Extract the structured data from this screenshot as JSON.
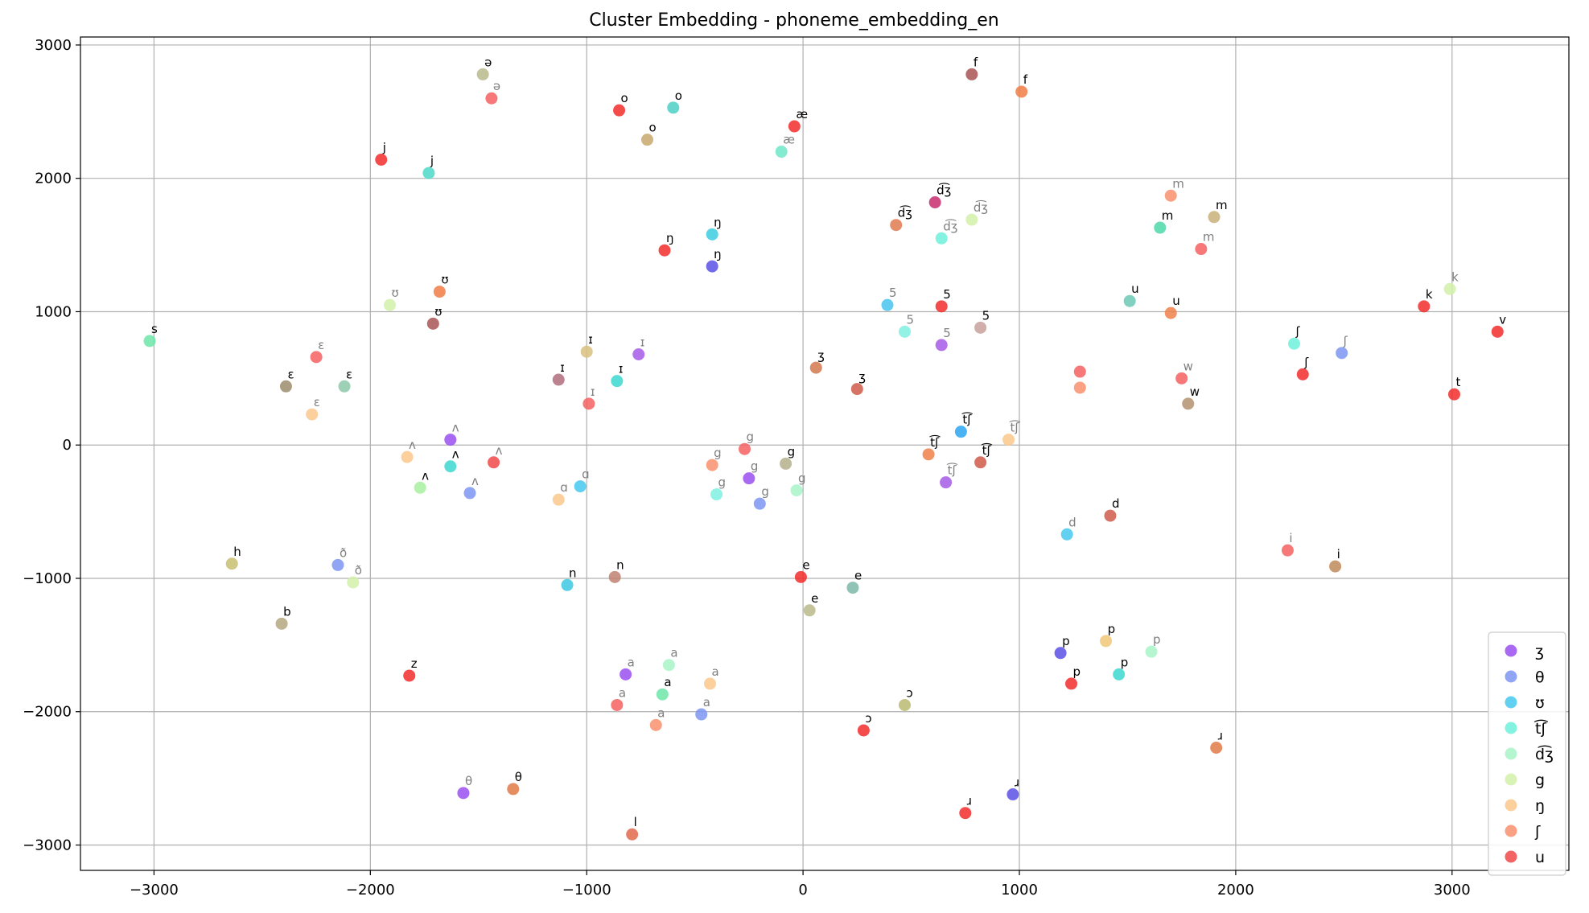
{
  "chart_data": {
    "type": "scatter",
    "title": "Cluster Embedding - phoneme_embedding_en",
    "xlabel": "",
    "ylabel": "",
    "xlim": [
      -3340,
      3540
    ],
    "ylim": [
      -3190,
      3060
    ],
    "xticks": [
      -3000,
      -2000,
      -1000,
      0,
      1000,
      2000,
      3000
    ],
    "yticks": [
      -3000,
      -2000,
      -1000,
      0,
      1000,
      2000,
      3000
    ],
    "xtick_labels": [
      "−3000",
      "−2000",
      "−1000",
      "0",
      "1000",
      "2000",
      "3000"
    ],
    "ytick_labels": [
      "−3000",
      "−2000",
      "−1000",
      "0",
      "1000",
      "2000",
      "3000"
    ],
    "grid": true,
    "legend_position": "bottom-right",
    "legend": [
      {
        "label": "ʒ",
        "color": "#9b4ff0"
      },
      {
        "label": "θ",
        "color": "#7d96f2"
      },
      {
        "label": "ʊ",
        "color": "#46c9ee"
      },
      {
        "label": "t͡ʃ",
        "color": "#6ff0dc"
      },
      {
        "label": "d͡ʒ",
        "color": "#a8f5c8"
      },
      {
        "label": "g",
        "color": "#d2f0a8"
      },
      {
        "label": "ŋ",
        "color": "#fac88c"
      },
      {
        "label": "ʃ",
        "color": "#f8906c"
      },
      {
        "label": "u",
        "color": "#f24848"
      }
    ],
    "points": [
      {
        "label": "ə",
        "x": -1480,
        "y": 2780,
        "color": "#b8ba8a",
        "label_color": "#000000"
      },
      {
        "label": "ə",
        "x": -1440,
        "y": 2600,
        "color": "#f56060",
        "label_color": "#808080"
      },
      {
        "label": "o",
        "x": -850,
        "y": 2510,
        "color": "#f22c2c",
        "label_color": "#000000"
      },
      {
        "label": "o",
        "x": -600,
        "y": 2530,
        "color": "#4ccfc4",
        "label_color": "#000000"
      },
      {
        "label": "o",
        "x": -720,
        "y": 2290,
        "color": "#c8a86c",
        "label_color": "#000000"
      },
      {
        "label": "æ",
        "x": -40,
        "y": 2390,
        "color": "#f22c2c",
        "label_color": "#000000"
      },
      {
        "label": "æ",
        "x": -100,
        "y": 2200,
        "color": "#6ee6c8",
        "label_color": "#808080"
      },
      {
        "label": "f",
        "x": 780,
        "y": 2780,
        "color": "#a85454",
        "label_color": "#000000"
      },
      {
        "label": "f",
        "x": 1010,
        "y": 2650,
        "color": "#f07c46",
        "label_color": "#000000"
      },
      {
        "label": "j",
        "x": -1950,
        "y": 2140,
        "color": "#f22c2c",
        "label_color": "#000000"
      },
      {
        "label": "j",
        "x": -1730,
        "y": 2040,
        "color": "#4cd8c8",
        "label_color": "#000000"
      },
      {
        "label": "d͡ʒ",
        "x": 610,
        "y": 1820,
        "color": "#c82c6e",
        "label_color": "#000000"
      },
      {
        "label": "d͡ʒ",
        "x": 780,
        "y": 1690,
        "color": "#d2f0a8",
        "label_color": "#808080"
      },
      {
        "label": "d͡ʒ",
        "x": 430,
        "y": 1650,
        "color": "#e07a50",
        "label_color": "#000000"
      },
      {
        "label": "d͡ʒ",
        "x": 640,
        "y": 1550,
        "color": "#6ff0dc",
        "label_color": "#808080"
      },
      {
        "label": "m",
        "x": 1700,
        "y": 1870,
        "color": "#f8906c",
        "label_color": "#808080"
      },
      {
        "label": "m",
        "x": 1900,
        "y": 1710,
        "color": "#c8b078",
        "label_color": "#000000"
      },
      {
        "label": "m",
        "x": 1650,
        "y": 1630,
        "color": "#4cd8a8",
        "label_color": "#000000"
      },
      {
        "label": "m",
        "x": 1840,
        "y": 1470,
        "color": "#f56060",
        "label_color": "#808080"
      },
      {
        "label": "ŋ",
        "x": -420,
        "y": 1580,
        "color": "#3ccce0",
        "label_color": "#000000"
      },
      {
        "label": "ŋ",
        "x": -640,
        "y": 1460,
        "color": "#f22c2c",
        "label_color": "#000000"
      },
      {
        "label": "ŋ",
        "x": -420,
        "y": 1340,
        "color": "#5a50e6",
        "label_color": "#000000"
      },
      {
        "label": "ʊ",
        "x": -1680,
        "y": 1150,
        "color": "#f07c46",
        "label_color": "#000000"
      },
      {
        "label": "ʊ",
        "x": -1910,
        "y": 1050,
        "color": "#d2f0a8",
        "label_color": "#808080"
      },
      {
        "label": "ʊ",
        "x": -1710,
        "y": 910,
        "color": "#a85454",
        "label_color": "#000000"
      },
      {
        "label": "s",
        "x": -3020,
        "y": 780,
        "color": "#6ee6a8",
        "label_color": "#000000"
      },
      {
        "label": "ɛ",
        "x": -2250,
        "y": 660,
        "color": "#f56060",
        "label_color": "#808080"
      },
      {
        "label": "ɛ",
        "x": -2390,
        "y": 440,
        "color": "#9c8c6c",
        "label_color": "#000000"
      },
      {
        "label": "ɛ",
        "x": -2120,
        "y": 440,
        "color": "#8cc8a8",
        "label_color": "#000000"
      },
      {
        "label": "ɛ",
        "x": -2270,
        "y": 230,
        "color": "#fac88c",
        "label_color": "#808080"
      },
      {
        "label": "ɪ",
        "x": -1000,
        "y": 700,
        "color": "#d8c080",
        "label_color": "#000000"
      },
      {
        "label": "ɪ",
        "x": -760,
        "y": 680,
        "color": "#a65ae8",
        "label_color": "#808080"
      },
      {
        "label": "ɪ",
        "x": -1130,
        "y": 490,
        "color": "#b06c7c",
        "label_color": "#000000"
      },
      {
        "label": "ɪ",
        "x": -860,
        "y": 480,
        "color": "#3cd8d0",
        "label_color": "#000000"
      },
      {
        "label": "ɪ",
        "x": -990,
        "y": 310,
        "color": "#f56060",
        "label_color": "#808080"
      },
      {
        "label": "5",
        "x": 390,
        "y": 1050,
        "color": "#46c4ee",
        "label_color": "#808080"
      },
      {
        "label": "5",
        "x": 640,
        "y": 1040,
        "color": "#f22c2c",
        "label_color": "#000000"
      },
      {
        "label": "5",
        "x": 470,
        "y": 850,
        "color": "#7ef0e0",
        "label_color": "#808080"
      },
      {
        "label": "5",
        "x": 820,
        "y": 880,
        "color": "#c8a09a",
        "label_color": "#000000"
      },
      {
        "label": "5",
        "x": 640,
        "y": 750,
        "color": "#a65ae8",
        "label_color": "#808080"
      },
      {
        "label": "ʒ",
        "x": 60,
        "y": 580,
        "color": "#d2784c",
        "label_color": "#000000"
      },
      {
        "label": "ʒ",
        "x": 250,
        "y": 420,
        "color": "#d05a4a",
        "label_color": "#000000"
      },
      {
        "label": "u",
        "x": 1510,
        "y": 1080,
        "color": "#6cc8b4",
        "label_color": "#000000"
      },
      {
        "label": "u",
        "x": 1700,
        "y": 990,
        "color": "#f0804a",
        "label_color": "#000000"
      },
      {
        "label": "",
        "x": 1280,
        "y": 550,
        "color": "#f56060",
        "label_color": "#000000"
      },
      {
        "label": "",
        "x": 1280,
        "y": 430,
        "color": "#f8906c",
        "label_color": "#000000"
      },
      {
        "label": "w",
        "x": 1750,
        "y": 500,
        "color": "#f56060",
        "label_color": "#808080"
      },
      {
        "label": "w",
        "x": 1780,
        "y": 310,
        "color": "#b49070",
        "label_color": "#000000"
      },
      {
        "label": "ʃ",
        "x": 2270,
        "y": 760,
        "color": "#6ff0dc",
        "label_color": "#000000"
      },
      {
        "label": "ʃ",
        "x": 2490,
        "y": 690,
        "color": "#7d96f2",
        "label_color": "#808080"
      },
      {
        "label": "ʃ",
        "x": 2310,
        "y": 530,
        "color": "#f22c2c",
        "label_color": "#000000"
      },
      {
        "label": "k",
        "x": 2990,
        "y": 1170,
        "color": "#d2f0a8",
        "label_color": "#808080"
      },
      {
        "label": "k",
        "x": 2870,
        "y": 1040,
        "color": "#f22c2c",
        "label_color": "#000000"
      },
      {
        "label": "v",
        "x": 3210,
        "y": 850,
        "color": "#f22c2c",
        "label_color": "#000000"
      },
      {
        "label": "t",
        "x": 3010,
        "y": 380,
        "color": "#f22c2c",
        "label_color": "#000000"
      },
      {
        "label": "t͡ʃ",
        "x": 730,
        "y": 100,
        "color": "#2ca4f2",
        "label_color": "#000000"
      },
      {
        "label": "t͡ʃ",
        "x": 950,
        "y": 40,
        "color": "#fac88c",
        "label_color": "#808080"
      },
      {
        "label": "t͡ʃ",
        "x": 580,
        "y": -70,
        "color": "#f0804a",
        "label_color": "#000000"
      },
      {
        "label": "t͡ʃ",
        "x": 820,
        "y": -130,
        "color": "#d05a4a",
        "label_color": "#000000"
      },
      {
        "label": "t͡ʃ",
        "x": 660,
        "y": -280,
        "color": "#a65ae8",
        "label_color": "#808080"
      },
      {
        "label": "ʌ",
        "x": -1630,
        "y": 40,
        "color": "#9b4ff0",
        "label_color": "#808080"
      },
      {
        "label": "ʌ",
        "x": -1830,
        "y": -90,
        "color": "#fac88c",
        "label_color": "#808080"
      },
      {
        "label": "ʌ",
        "x": -1630,
        "y": -160,
        "color": "#3cd8d0",
        "label_color": "#000000"
      },
      {
        "label": "ʌ",
        "x": -1430,
        "y": -130,
        "color": "#f24848",
        "label_color": "#808080"
      },
      {
        "label": "ʌ",
        "x": -1770,
        "y": -320,
        "color": "#a8f0a0",
        "label_color": "#000000"
      },
      {
        "label": "ʌ",
        "x": -1540,
        "y": -360,
        "color": "#7d96f2",
        "label_color": "#808080"
      },
      {
        "label": "ɑ",
        "x": -1030,
        "y": -310,
        "color": "#46c9ee",
        "label_color": "#808080"
      },
      {
        "label": "ɑ",
        "x": -1130,
        "y": -410,
        "color": "#fac88c",
        "label_color": "#808080"
      },
      {
        "label": "g",
        "x": -270,
        "y": -30,
        "color": "#f56060",
        "label_color": "#808080"
      },
      {
        "label": "g",
        "x": -420,
        "y": -150,
        "color": "#f8906c",
        "label_color": "#808080"
      },
      {
        "label": "g",
        "x": -80,
        "y": -140,
        "color": "#b4b08c",
        "label_color": "#000000"
      },
      {
        "label": "g",
        "x": -250,
        "y": -250,
        "color": "#9b4ff0",
        "label_color": "#808080"
      },
      {
        "label": "g",
        "x": -400,
        "y": -370,
        "color": "#7ef0e0",
        "label_color": "#808080"
      },
      {
        "label": "g",
        "x": -30,
        "y": -340,
        "color": "#a8f5c8",
        "label_color": "#808080"
      },
      {
        "label": "g",
        "x": -200,
        "y": -440,
        "color": "#7d96f2",
        "label_color": "#808080"
      },
      {
        "label": "d",
        "x": 1420,
        "y": -530,
        "color": "#d05a4a",
        "label_color": "#000000"
      },
      {
        "label": "d",
        "x": 1220,
        "y": -670,
        "color": "#46c9ee",
        "label_color": "#808080"
      },
      {
        "label": "i",
        "x": 2240,
        "y": -790,
        "color": "#f56060",
        "label_color": "#808080"
      },
      {
        "label": "i",
        "x": 2460,
        "y": -910,
        "color": "#c08a5a",
        "label_color": "#000000"
      },
      {
        "label": "h",
        "x": -2640,
        "y": -890,
        "color": "#c8be70",
        "label_color": "#000000"
      },
      {
        "label": "ð",
        "x": -2150,
        "y": -900,
        "color": "#7d96f2",
        "label_color": "#808080"
      },
      {
        "label": "ð",
        "x": -2080,
        "y": -1030,
        "color": "#d2f0a8",
        "label_color": "#808080"
      },
      {
        "label": "n",
        "x": -1090,
        "y": -1050,
        "color": "#3cc8e0",
        "label_color": "#000000"
      },
      {
        "label": "n",
        "x": -870,
        "y": -990,
        "color": "#c08070",
        "label_color": "#000000"
      },
      {
        "label": "e",
        "x": -10,
        "y": -990,
        "color": "#f22c2c",
        "label_color": "#000000"
      },
      {
        "label": "e",
        "x": 230,
        "y": -1070,
        "color": "#7cb8a8",
        "label_color": "#000000"
      },
      {
        "label": "e",
        "x": 30,
        "y": -1240,
        "color": "#b8ba8a",
        "label_color": "#000000"
      },
      {
        "label": "b",
        "x": -2410,
        "y": -1340,
        "color": "#b4a880",
        "label_color": "#000000"
      },
      {
        "label": "z",
        "x": -1820,
        "y": -1730,
        "color": "#f22c2c",
        "label_color": "#000000"
      },
      {
        "label": "a",
        "x": -620,
        "y": -1650,
        "color": "#a8f5c8",
        "label_color": "#808080"
      },
      {
        "label": "a",
        "x": -820,
        "y": -1720,
        "color": "#9b4ff0",
        "label_color": "#808080"
      },
      {
        "label": "a",
        "x": -430,
        "y": -1790,
        "color": "#fac88c",
        "label_color": "#808080"
      },
      {
        "label": "a",
        "x": -650,
        "y": -1870,
        "color": "#6ee6a8",
        "label_color": "#000000"
      },
      {
        "label": "a",
        "x": -860,
        "y": -1950,
        "color": "#f56060",
        "label_color": "#808080"
      },
      {
        "label": "a",
        "x": -470,
        "y": -2020,
        "color": "#7d96f2",
        "label_color": "#808080"
      },
      {
        "label": "a",
        "x": -680,
        "y": -2100,
        "color": "#f8906c",
        "label_color": "#808080"
      },
      {
        "label": "ɔ",
        "x": 470,
        "y": -1950,
        "color": "#b8ba70",
        "label_color": "#000000"
      },
      {
        "label": "ɔ",
        "x": 280,
        "y": -2140,
        "color": "#f22c2c",
        "label_color": "#000000"
      },
      {
        "label": "p",
        "x": 1190,
        "y": -1560,
        "color": "#5a50e6",
        "label_color": "#000000"
      },
      {
        "label": "p",
        "x": 1400,
        "y": -1470,
        "color": "#f0c878",
        "label_color": "#000000"
      },
      {
        "label": "p",
        "x": 1610,
        "y": -1550,
        "color": "#a8f5c8",
        "label_color": "#808080"
      },
      {
        "label": "p",
        "x": 1460,
        "y": -1720,
        "color": "#3cd8d0",
        "label_color": "#000000"
      },
      {
        "label": "p",
        "x": 1240,
        "y": -1790,
        "color": "#f22c2c",
        "label_color": "#000000"
      },
      {
        "label": "ɹ",
        "x": 1910,
        "y": -2270,
        "color": "#e07a46",
        "label_color": "#000000"
      },
      {
        "label": "ɹ",
        "x": 970,
        "y": -2620,
        "color": "#5a50e6",
        "label_color": "#000000"
      },
      {
        "label": "ɹ",
        "x": 750,
        "y": -2760,
        "color": "#f22c2c",
        "label_color": "#000000"
      },
      {
        "label": "θ",
        "x": -1570,
        "y": -2610,
        "color": "#9b4ff0",
        "label_color": "#808080"
      },
      {
        "label": "θ",
        "x": -1340,
        "y": -2580,
        "color": "#e07a46",
        "label_color": "#000000"
      },
      {
        "label": "l",
        "x": -790,
        "y": -2920,
        "color": "#e06a4c",
        "label_color": "#000000"
      }
    ]
  }
}
